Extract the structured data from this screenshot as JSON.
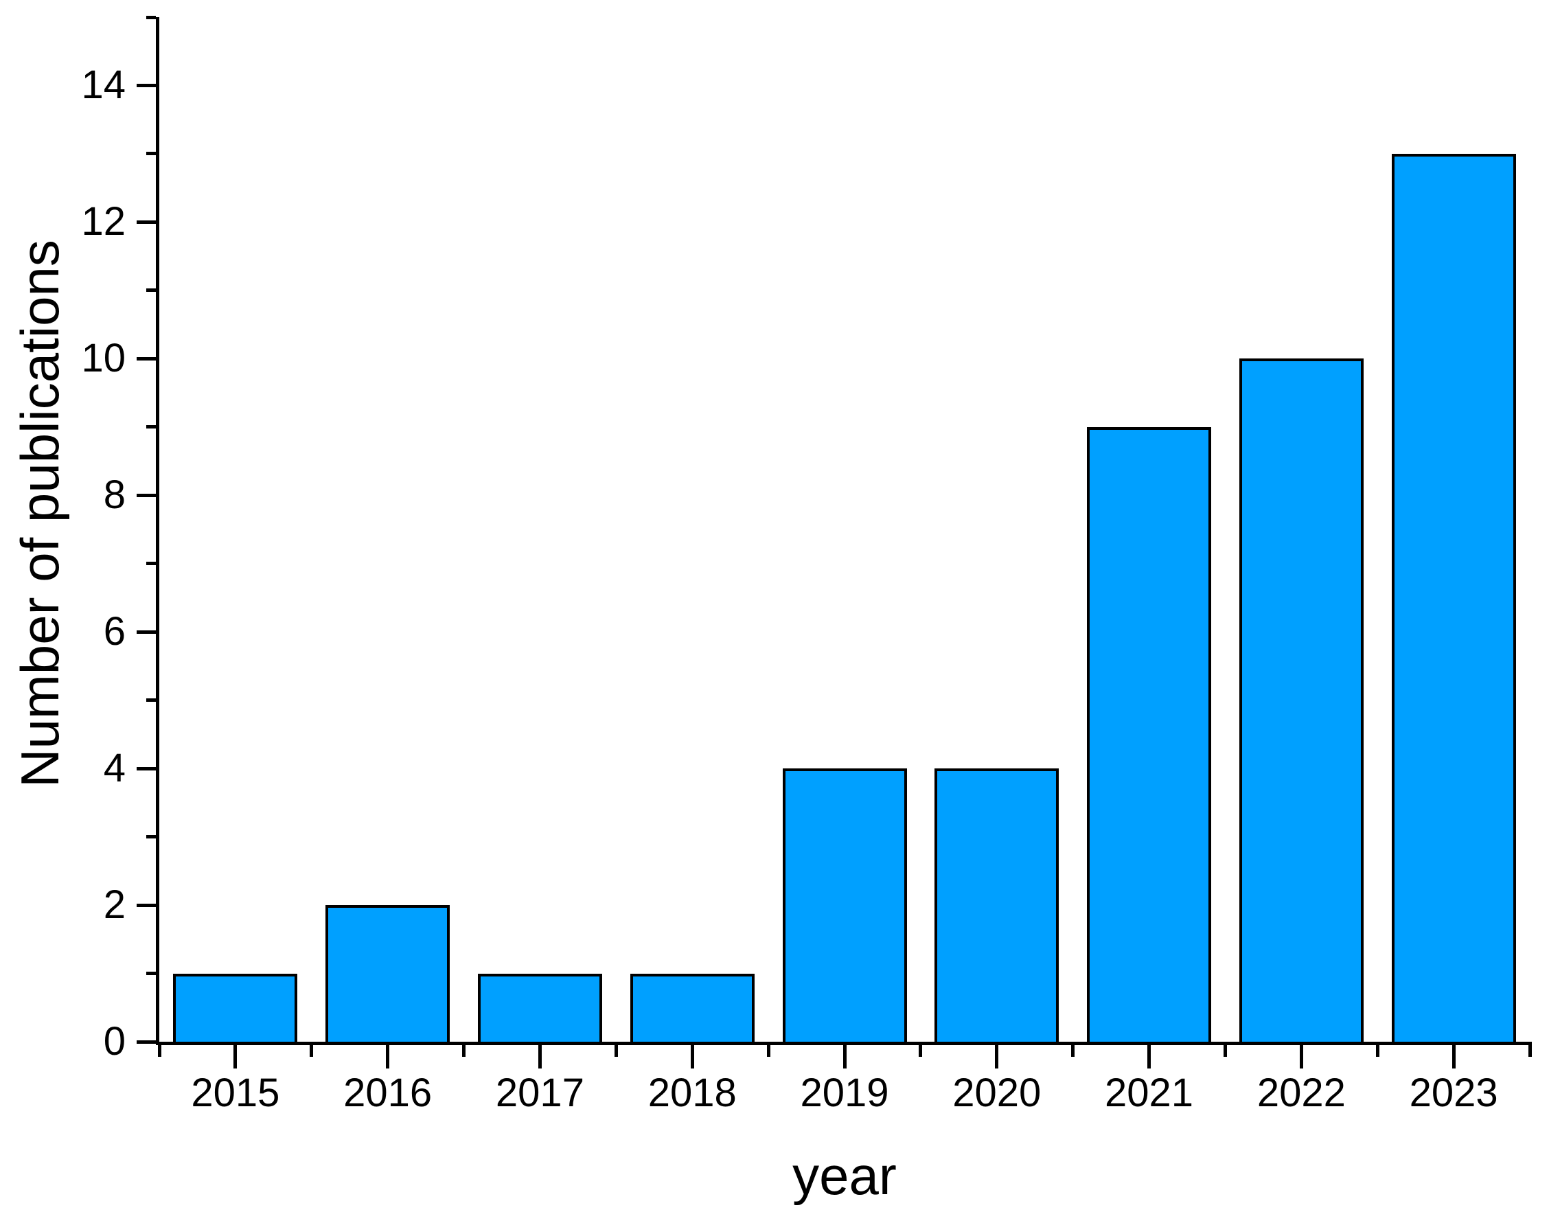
{
  "figure": {
    "background": "#ffffff",
    "text_color": "#000000"
  },
  "chart_data": {
    "type": "bar",
    "title": "",
    "xlabel": "year",
    "ylabel": "Number of publications",
    "categories": [
      "2015",
      "2016",
      "2017",
      "2018",
      "2019",
      "2020",
      "2021",
      "2022",
      "2023"
    ],
    "values": [
      1,
      2,
      1,
      1,
      4,
      4,
      9,
      10,
      13
    ],
    "ylim": [
      0,
      15
    ],
    "y_major_ticks": [
      0,
      2,
      4,
      6,
      8,
      10,
      12,
      14
    ],
    "y_minor_ticks": [
      1,
      3,
      5,
      7,
      9,
      11,
      13,
      15
    ],
    "bar_fill": "#00A0FF",
    "bar_stroke": "#000000",
    "axis_color": "#000000",
    "grid": false,
    "legend": false,
    "tick_direction": "out"
  }
}
